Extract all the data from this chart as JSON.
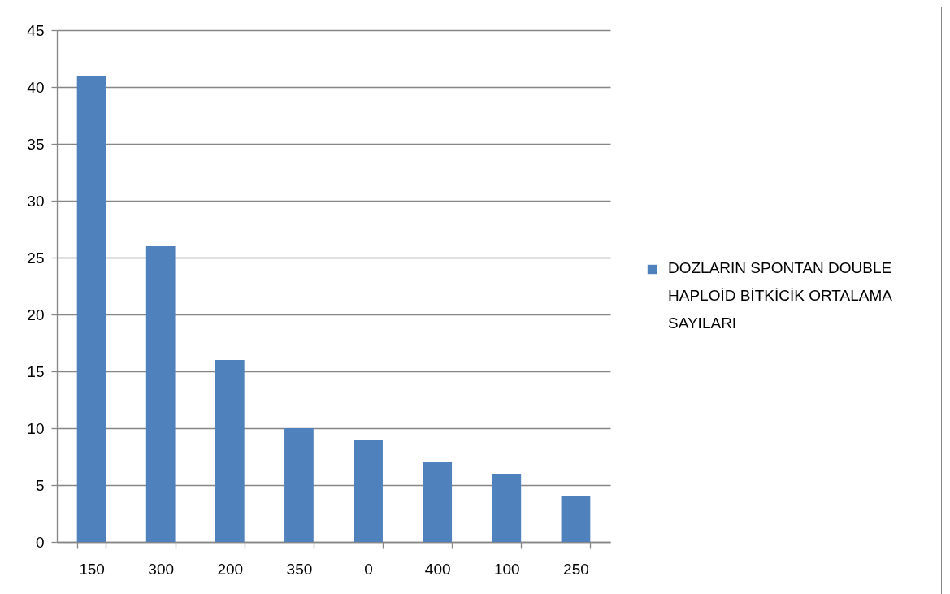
{
  "chart_data": {
    "type": "bar",
    "categories": [
      "150",
      "300",
      "200",
      "350",
      "0",
      "400",
      "100",
      "250"
    ],
    "series": [
      {
        "name": "DOZLARIN  SPONTAN DOUBLE HAPLOİD BİTKİCİK  ORTALAMA SAYILARI",
        "color": "#4f81bd",
        "values": [
          41,
          26,
          16,
          10,
          9,
          7,
          6,
          4
        ]
      }
    ],
    "ylim": [
      0,
      45
    ],
    "yticks": [
      0,
      5,
      10,
      15,
      20,
      25,
      30,
      35,
      40,
      45
    ],
    "grid": "y",
    "legend": "right"
  }
}
